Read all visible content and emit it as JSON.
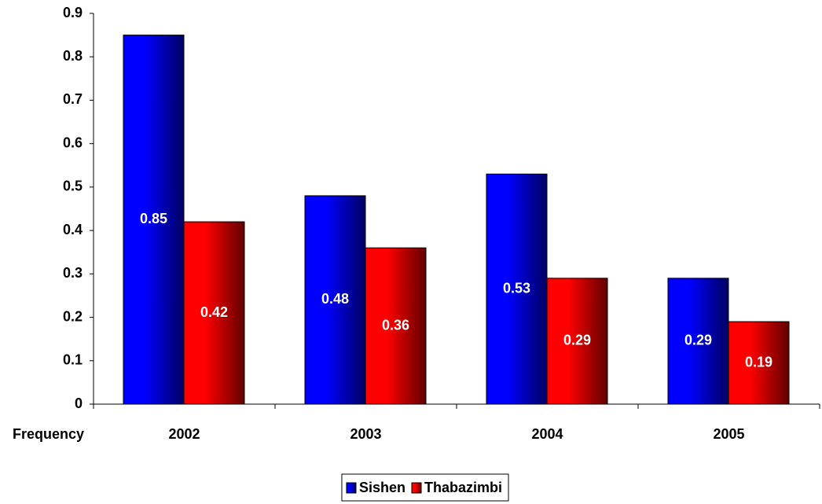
{
  "chart_data": {
    "type": "bar",
    "x_label": "Frequency",
    "categories": [
      "2002",
      "2003",
      "2004",
      "2005"
    ],
    "series": [
      {
        "name": "Sishen",
        "color": "#0000ff",
        "values": [
          0.85,
          0.48,
          0.53,
          0.29
        ]
      },
      {
        "name": "Thabazimbi",
        "color": "#ff0000",
        "values": [
          0.42,
          0.36,
          0.29,
          0.19
        ]
      }
    ],
    "ylim": [
      0,
      0.9
    ],
    "yticks": [
      0,
      0.1,
      0.2,
      0.3,
      0.4,
      0.5,
      0.6,
      0.7,
      0.8,
      0.9
    ],
    "legend": "bottom"
  }
}
